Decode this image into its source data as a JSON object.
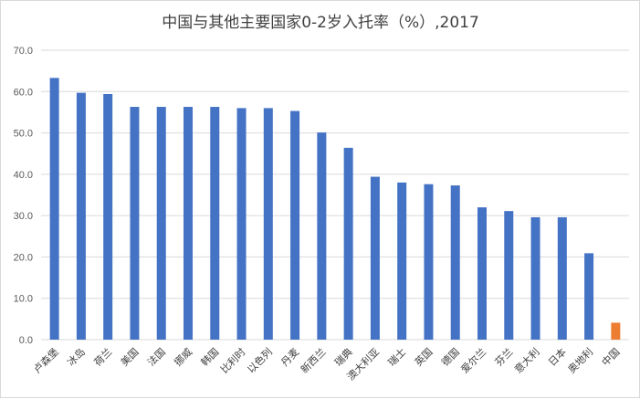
{
  "chart_data": {
    "type": "bar",
    "title": "中国与其他主要国家0-2岁入托率（%）,2017",
    "xlabel": "",
    "ylabel": "",
    "ylim": [
      0,
      70
    ],
    "yticks": [
      "0.0",
      "10.0",
      "20.0",
      "30.0",
      "40.0",
      "50.0",
      "60.0",
      "70.0"
    ],
    "grid": true,
    "legend": "none",
    "categories": [
      "卢森堡",
      "冰岛",
      "荷兰",
      "美国",
      "法国",
      "挪威",
      "韩国",
      "比利时",
      "以色列",
      "丹麦",
      "新西兰",
      "瑞典",
      "澳大利亚",
      "瑞士",
      "英国",
      "德国",
      "爱尔兰",
      "芬兰",
      "意大利",
      "日本",
      "奥地利",
      "中国"
    ],
    "values": [
      63.3,
      59.7,
      59.4,
      56.3,
      56.3,
      56.3,
      56.3,
      56.0,
      56.0,
      55.3,
      50.1,
      46.4,
      39.4,
      38.0,
      37.6,
      37.3,
      32.0,
      31.1,
      29.6,
      29.6,
      20.9,
      4.1
    ],
    "colors": {
      "bar": "#4472c4",
      "highlight": "#ed7d31",
      "highlight_category": "中国"
    }
  }
}
